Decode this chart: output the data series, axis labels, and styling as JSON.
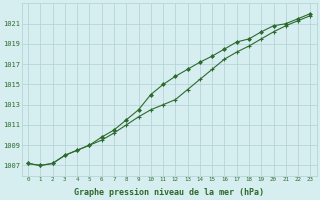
{
  "x": [
    0,
    1,
    2,
    3,
    4,
    5,
    6,
    7,
    8,
    9,
    10,
    11,
    12,
    13,
    14,
    15,
    16,
    17,
    18,
    19,
    20,
    21,
    22,
    23
  ],
  "line1": [
    1007.2,
    1007.0,
    1007.2,
    1008.0,
    1008.5,
    1009.0,
    1009.5,
    1010.2,
    1011.0,
    1011.8,
    1012.5,
    1013.0,
    1013.5,
    1014.5,
    1015.5,
    1016.5,
    1017.5,
    1018.2,
    1018.8,
    1019.5,
    1020.2,
    1020.8,
    1021.3,
    1021.8
  ],
  "line2": [
    1007.2,
    1007.0,
    1007.2,
    1008.0,
    1008.5,
    1009.0,
    1009.8,
    1010.5,
    1011.5,
    1012.5,
    1014.0,
    1015.0,
    1015.8,
    1016.5,
    1017.2,
    1017.8,
    1018.5,
    1019.2,
    1019.5,
    1020.2,
    1020.8,
    1021.0,
    1021.5,
    1022.0
  ],
  "line_color": "#2d6a2d",
  "bg_color": "#d6eef0",
  "grid_color": "#b0cfd4",
  "ylabel_values": [
    1007,
    1009,
    1011,
    1013,
    1015,
    1017,
    1019,
    1021
  ],
  "xlabel_label": "Graphe pression niveau de la mer (hPa)",
  "xlim": [
    -0.5,
    23.5
  ],
  "ylim": [
    1006.0,
    1023.0
  ]
}
